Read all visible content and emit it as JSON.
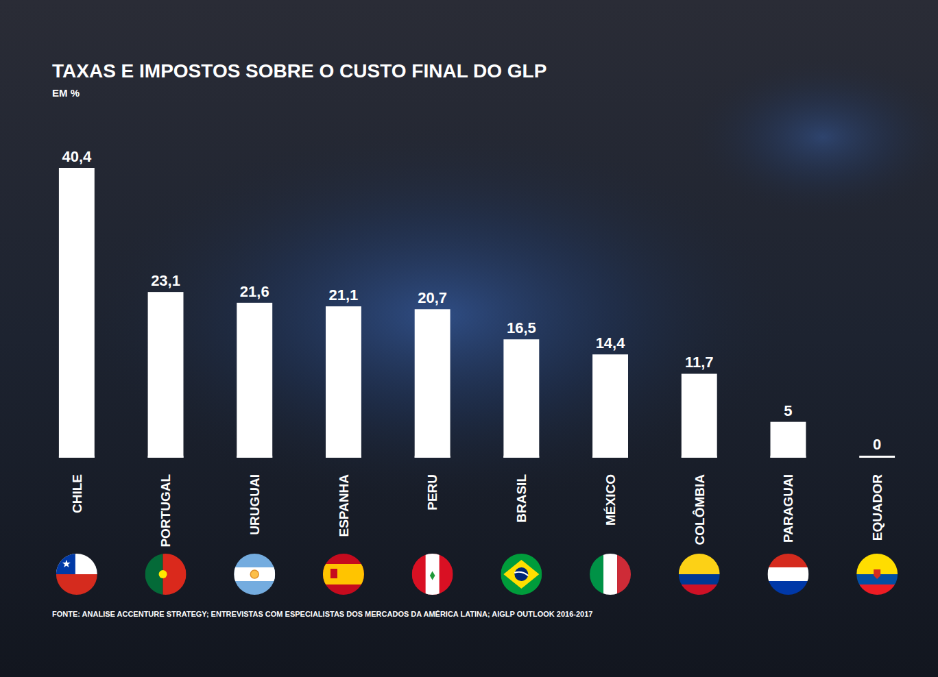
{
  "chart_data": {
    "type": "bar",
    "title": "TAXAS E IMPOSTOS SOBRE O CUSTO FINAL DO GLP",
    "subtitle": "EM %",
    "source": "FONTE: ANALISE ACCENTURE STRATEGY; ENTREVISTAS COM ESPECIALISTAS DOS MERCADOS DA AMÉRICA LATINA; AIGLP OUTLOOK 2016-2017",
    "categories": [
      "CHILE",
      "PORTUGAL",
      "URUGUAI",
      "ESPANHA",
      "PERU",
      "BRASIL",
      "MÉXICO",
      "COLÔMBIA",
      "PARAGUAI",
      "EQUADOR"
    ],
    "values": [
      40.4,
      23.1,
      21.6,
      21.1,
      20.7,
      16.5,
      14.4,
      11.7,
      5,
      0
    ],
    "value_labels": [
      "40,4",
      "23,1",
      "21,6",
      "21,1",
      "20,7",
      "16,5",
      "14,4",
      "11,7",
      "5",
      "0"
    ],
    "color": "#ffffff",
    "ylim": [
      0,
      40.4
    ],
    "data_labels": true,
    "tick_labels": "x"
  }
}
